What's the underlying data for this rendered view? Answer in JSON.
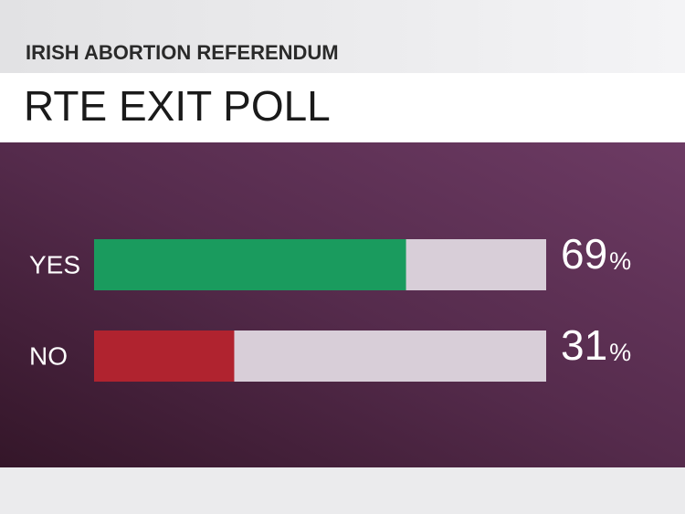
{
  "chart_data": {
    "type": "bar",
    "orientation": "horizontal",
    "subtitle": "IRISH ABORTION REFERENDUM",
    "title": "RTE EXIT POLL",
    "categories": [
      "YES",
      "NO"
    ],
    "values": [
      69,
      31
    ],
    "value_labels": [
      "69%",
      "31%"
    ],
    "colors": [
      "#1a9b5e",
      "#b0232f"
    ],
    "track_color": "#d8ced8",
    "xlim": [
      0,
      100
    ]
  }
}
